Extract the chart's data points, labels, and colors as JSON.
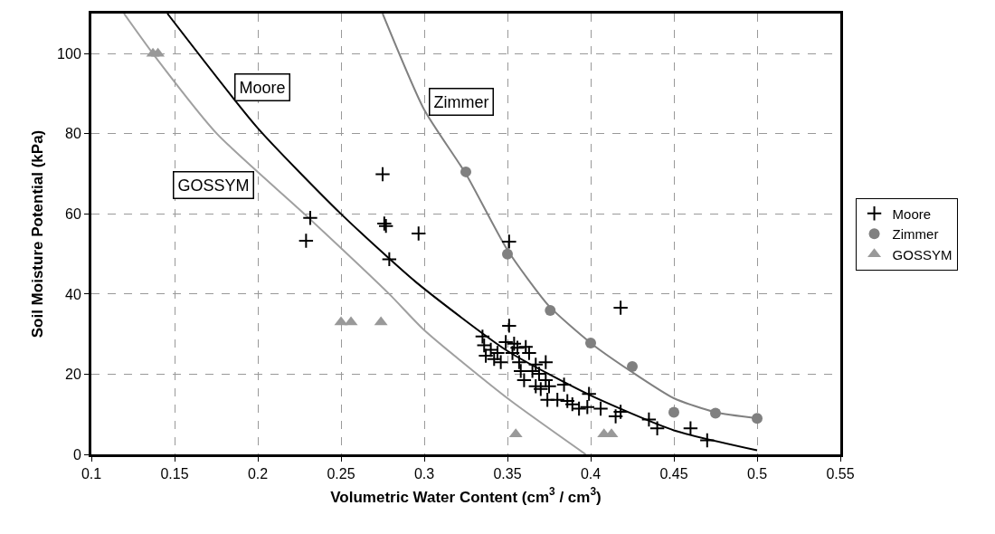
{
  "chart_data": {
    "type": "scatter",
    "xlabel": "Volumetric Water Content (cm$^{3}$ / cm$^{3}$)",
    "ylabel": "Soil Moisture Potential (kPa)",
    "xlim": [
      0.1,
      0.55
    ],
    "xticks": [
      0.1,
      0.15,
      0.2,
      0.25,
      0.3,
      0.35,
      0.4,
      0.45,
      0.5,
      0.55
    ],
    "ylim": [
      0,
      110
    ],
    "yticks": [
      0,
      20,
      40,
      60,
      80,
      100
    ],
    "grid": true,
    "legend": "right",
    "series": [
      {
        "name": "Moore",
        "marker": "cross",
        "color": "#000000",
        "x": [
          0.275,
          0.276,
          0.277,
          0.2315,
          0.229,
          0.279,
          0.2966,
          0.351,
          0.351,
          0.335,
          0.336,
          0.337,
          0.34,
          0.344,
          0.346,
          0.342,
          0.349,
          0.354,
          0.353,
          0.356,
          0.361,
          0.363,
          0.357,
          0.358,
          0.36,
          0.365,
          0.367,
          0.369,
          0.373,
          0.367,
          0.37,
          0.375,
          0.373,
          0.384,
          0.374,
          0.38,
          0.386,
          0.389,
          0.393,
          0.399,
          0.398,
          0.406,
          0.415,
          0.418,
          0.435,
          0.44,
          0.418,
          0.46,
          0.47
        ],
        "values": [
          69.9,
          57.6,
          57,
          59,
          53.3,
          48.7,
          55.1,
          53.1,
          32.1,
          29.4,
          27.2,
          24.6,
          26.1,
          25.3,
          23,
          23.8,
          28,
          27.6,
          25.3,
          26.6,
          26.8,
          25.3,
          23,
          20.8,
          18.5,
          20.8,
          22.4,
          20.1,
          23,
          17,
          16.3,
          17,
          18.5,
          17.4,
          13.6,
          13.6,
          13.3,
          12.5,
          11.4,
          15.1,
          11.8,
          11.4,
          9.5,
          10.6,
          8.7,
          6.5,
          36.6,
          6.5,
          3.5
        ]
      },
      {
        "name": "Zimmer",
        "marker": "circle",
        "color": "#808080",
        "x": [
          0.325,
          0.35,
          0.3757,
          0.4,
          0.425,
          0.45,
          0.475,
          0.5
        ],
        "values": [
          70.5,
          50,
          35.9,
          27.8,
          21.9,
          10.5,
          10.3,
          9
        ]
      },
      {
        "name": "GOSSYM",
        "marker": "triangle",
        "color": "#999999",
        "x": [
          0.137,
          0.14,
          0.25,
          0.256,
          0.274,
          0.355,
          0.408,
          0.4125
        ],
        "values": [
          100,
          100,
          33,
          33,
          33,
          5,
          5,
          5
        ]
      },
      {
        "type": "line",
        "marker": "none",
        "color": "#000000",
        "x": [
          0.1457,
          0.2,
          0.25,
          0.295,
          0.35,
          0.4,
          0.45,
          0.5
        ],
        "values": [
          110,
          81.4,
          60,
          43,
          25.8,
          14.7,
          6,
          1
        ]
      },
      {
        "type": "line",
        "marker": "none",
        "color": "#808080",
        "x": [
          0.275,
          0.3,
          0.325,
          0.35,
          0.375,
          0.4,
          0.425,
          0.45,
          0.475,
          0.5
        ],
        "values": [
          110,
          86,
          70,
          51,
          37,
          27.8,
          20.5,
          14,
          10.5,
          9
        ]
      },
      {
        "type": "line",
        "marker": "none",
        "color": "#a0a0a0",
        "x": [
          0.1196,
          0.137,
          0.1755,
          0.228,
          0.279,
          0.3,
          0.35,
          0.397
        ],
        "values": [
          110,
          100,
          80,
          60,
          40,
          31,
          14,
          0
        ]
      }
    ],
    "annotations": [
      "Moore",
      "Zimmer",
      "GOSSYM"
    ]
  }
}
